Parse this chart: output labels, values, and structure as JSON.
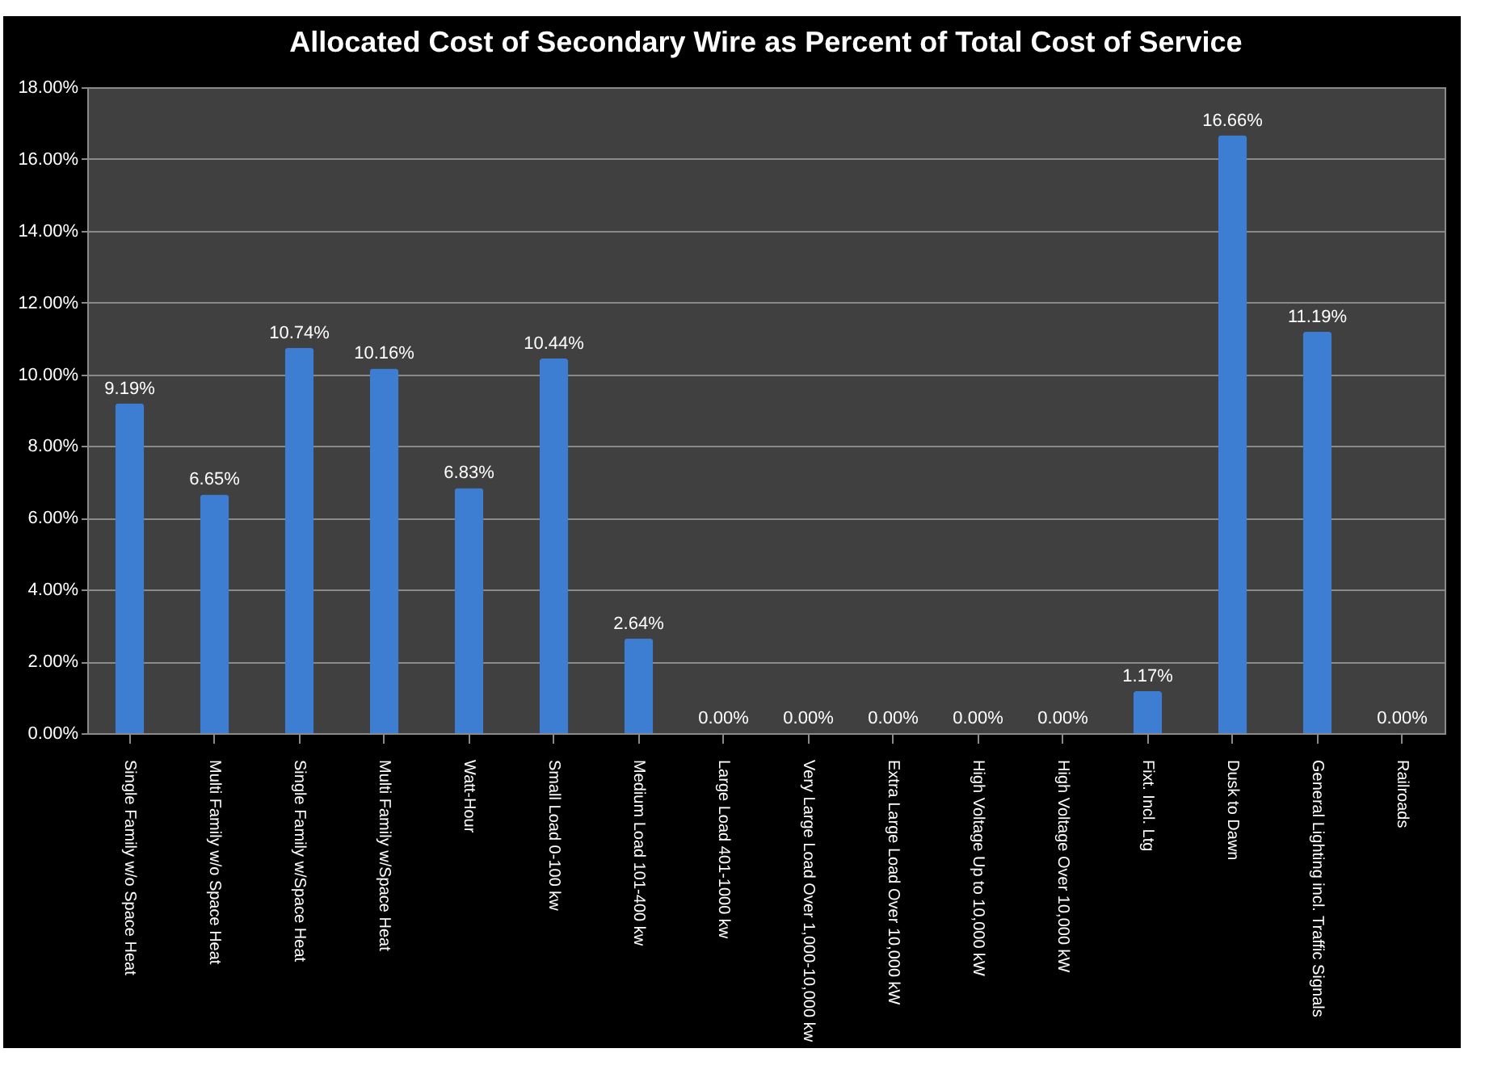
{
  "chart_data": {
    "type": "bar",
    "title": "Allocated Cost of Secondary Wire as Percent of Total Cost of Service",
    "categories": [
      "Single Family w/o Space Heat",
      "Multi Family w/o Space Heat",
      "Single Family w/Space Heat",
      "Multi Family w/Space Heat",
      "Watt-Hour",
      "Small Load 0-100 kw",
      "Medium Load 101-400 kw",
      "Large Load 401-1000 kw",
      "Very Large Load Over 1,000-10,000 kw",
      "Extra Large Load Over 10,000 kW",
      "High Voltage Up to 10,000 kW",
      "High Voltage Over 10,000 kW",
      "Fixt. Incl. Ltg",
      "Dusk to Dawn",
      "General Lighting incl. Traffic Signals",
      "Railroads"
    ],
    "values": [
      9.19,
      6.65,
      10.74,
      10.16,
      6.83,
      10.44,
      2.64,
      0,
      0,
      0,
      0,
      0,
      1.17,
      16.66,
      11.19,
      0
    ],
    "value_labels": [
      "9.19%",
      "6.65%",
      "10.74%",
      "10.16%",
      "6.83%",
      "10.44%",
      "2.64%",
      "0.00%",
      "0.00%",
      "0.00%",
      "0.00%",
      "0.00%",
      "1.17%",
      "16.66%",
      "11.19%",
      "0.00%"
    ],
    "color": "#3d7dd2",
    "ylim": [
      0,
      18
    ],
    "yticks": [
      {
        "value": 0,
        "label": "0.00%"
      },
      {
        "value": 2,
        "label": "2.00%"
      },
      {
        "value": 4,
        "label": "4.00%"
      },
      {
        "value": 6,
        "label": "6.00%"
      },
      {
        "value": 8,
        "label": "8.00%"
      },
      {
        "value": 10,
        "label": "10.00%"
      },
      {
        "value": 12,
        "label": "12.00%"
      },
      {
        "value": 14,
        "label": "14.00%"
      },
      {
        "value": 16,
        "label": "16.00%"
      },
      {
        "value": 18,
        "label": "18.00%"
      }
    ],
    "grid": "y"
  }
}
